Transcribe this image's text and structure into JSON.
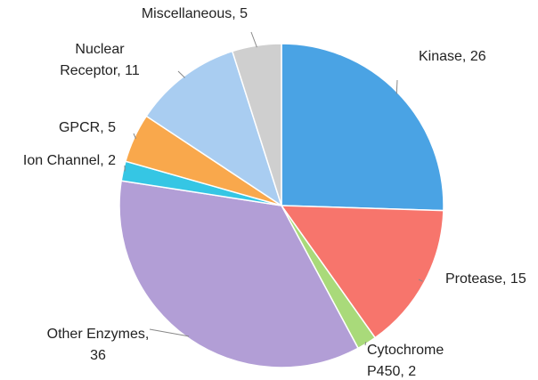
{
  "chart_data": {
    "type": "pie",
    "values": [
      26,
      15,
      2,
      36,
      2,
      5,
      11,
      5
    ],
    "value_labels": [
      "Kinase, 26",
      "Protease, 15",
      "Cytochrome\nP450, 2",
      "Other Enzymes,\n36",
      "Ion Channel, 2",
      "GPCR, 5",
      "Nuclear\nReceptor, 11",
      "Miscellaneous, 5"
    ],
    "colors": [
      "#4aa3e4",
      "#f7756c",
      "#a9da7a",
      "#b29ed6",
      "#35c6e4",
      "#f9a84c",
      "#a9cdf1",
      "#cfcfcf"
    ]
  }
}
